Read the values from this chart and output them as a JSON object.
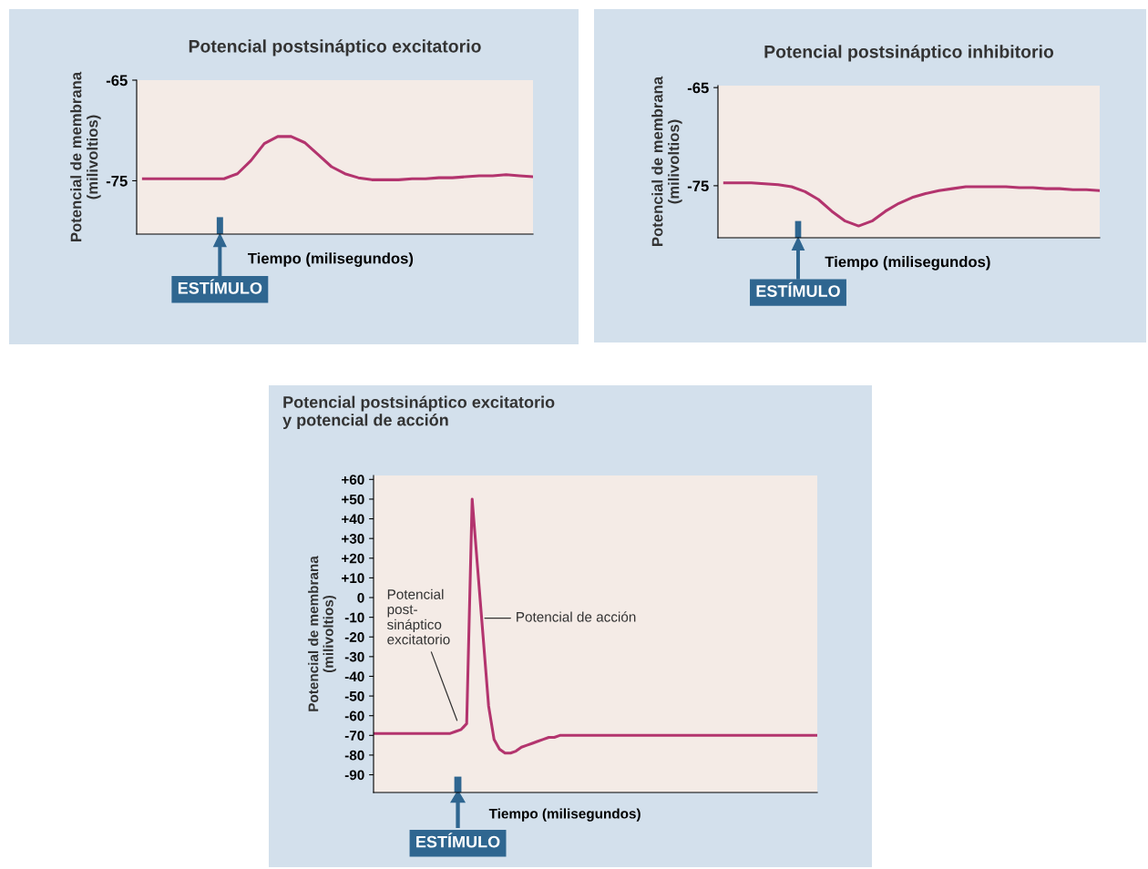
{
  "chart_data": [
    {
      "type": "line",
      "title": "Potencial postsináptico excitatorio",
      "xlabel": "Tiempo (milisegundos)",
      "ylabel": "Potencial de membrana\n(milivoltios)",
      "categories": [
        null,
        null,
        null,
        null,
        null,
        null,
        null,
        null,
        null,
        null,
        null,
        null,
        null,
        null,
        null,
        null,
        null,
        null,
        null,
        null,
        null,
        null,
        null,
        null,
        null,
        null,
        null,
        null,
        null,
        null
      ],
      "series": [
        {
          "color": "#b3346e",
          "values": [
            -74.8,
            -74.8,
            -74.8,
            -74.8,
            -74.8,
            -74.8,
            -74.8,
            -74.3,
            -73.0,
            -71.3,
            -70.6,
            -70.6,
            -71.2,
            -72.4,
            -73.6,
            -74.3,
            -74.7,
            -74.9,
            -74.9,
            -74.9,
            -74.8,
            -74.8,
            -74.7,
            -74.7,
            -74.6,
            -74.5,
            -74.5,
            -74.4,
            -74.5,
            -74.6
          ]
        }
      ],
      "ylim": [
        -80.3,
        -65
      ],
      "yticks": [
        -65,
        -75
      ],
      "tick_labels": "y",
      "grid": false,
      "legend": false,
      "annotations": [
        "ESTÍMULO"
      ]
    },
    {
      "type": "line",
      "title": "Potencial postsináptico inhibitorio",
      "xlabel": "Tiempo (milisegundos)",
      "ylabel": "Potencial de membrana\n(milivoltios)",
      "categories": [
        null,
        null,
        null,
        null,
        null,
        null,
        null,
        null,
        null,
        null,
        null,
        null,
        null,
        null,
        null,
        null,
        null,
        null,
        null,
        null,
        null,
        null,
        null,
        null,
        null,
        null,
        null,
        null,
        null
      ],
      "series": [
        {
          "color": "#b3346e",
          "values": [
            -74.7,
            -74.7,
            -74.7,
            -74.8,
            -74.9,
            -75.1,
            -75.6,
            -76.4,
            -77.6,
            -78.6,
            -79.1,
            -78.6,
            -77.6,
            -76.8,
            -76.2,
            -75.8,
            -75.5,
            -75.3,
            -75.1,
            -75.1,
            -75.1,
            -75.1,
            -75.2,
            -75.2,
            -75.3,
            -75.3,
            -75.4,
            -75.4,
            -75.5
          ]
        }
      ],
      "ylim": [
        -80.3,
        -64.8
      ],
      "yticks": [
        -65,
        -75
      ],
      "tick_labels": "y",
      "grid": false,
      "legend": false,
      "annotations": [
        "ESTÍMULO"
      ]
    },
    {
      "type": "line",
      "title": "Potencial postsináptico excitatorio\ny potencial de acción",
      "xlabel": "Tiempo (milisegundos)",
      "ylabel": "Potencial de membrana\n(milivoltios)",
      "categories": [
        null,
        null,
        null,
        null,
        null,
        null,
        null,
        null,
        null,
        null,
        null,
        null,
        null,
        null,
        null,
        null,
        null,
        null,
        null,
        null,
        null,
        null,
        null,
        null,
        null,
        null,
        null,
        null,
        null,
        null,
        null,
        null,
        null,
        null,
        null,
        null,
        null,
        null,
        null,
        null,
        null,
        null,
        null,
        null,
        null,
        null,
        null,
        null,
        null,
        null,
        null,
        null,
        null,
        null,
        null,
        null,
        null,
        null,
        null,
        null,
        null,
        null,
        null,
        null,
        null,
        null,
        null,
        null,
        null,
        null,
        null,
        null,
        null,
        null,
        null,
        null,
        null,
        null,
        null,
        null,
        null,
        null
      ],
      "series": [
        {
          "color": "#b3346e",
          "values": [
            -69,
            -69,
            -69,
            -69,
            -69,
            -69,
            -69,
            -69,
            -69,
            -69,
            -69,
            -69,
            -69,
            -69,
            -69,
            -68,
            -67,
            -64,
            50,
            15,
            -20,
            -55,
            -72,
            -77,
            -79,
            -79,
            -78,
            -76,
            -75,
            -74,
            -73,
            -72,
            -71,
            -71,
            -70,
            -70,
            -70,
            -70,
            -70,
            -70,
            -70,
            -70,
            -70,
            -70,
            -70,
            -70,
            -70,
            -70,
            -70,
            -70,
            -70,
            -70,
            -70,
            -70,
            -70,
            -70,
            -70,
            -70,
            -70,
            -70,
            -70,
            -70,
            -70,
            -70,
            -70,
            -70,
            -70,
            -70,
            -70,
            -70,
            -70,
            -70,
            -70,
            -70,
            -70,
            -70,
            -70,
            -70,
            -70,
            -70,
            -70,
            -70
          ]
        }
      ],
      "ylim": [
        -99,
        62
      ],
      "yticks": [
        {
          "value": 60,
          "label": "+60"
        },
        {
          "value": 50,
          "label": "+50"
        },
        {
          "value": 40,
          "label": "+40"
        },
        {
          "value": 30,
          "label": "+30"
        },
        {
          "value": 20,
          "label": "+20"
        },
        {
          "value": 10,
          "label": "+10"
        },
        0,
        -10,
        -20,
        -30,
        -40,
        -50,
        -60,
        -70,
        -80,
        -90
      ],
      "tick_labels": "y",
      "grid": false,
      "legend": false,
      "annotations": [
        "Potencial\npost-\nsináptico\nexcitatorio",
        "Potencial de acción",
        "ESTÍMULO"
      ]
    }
  ]
}
